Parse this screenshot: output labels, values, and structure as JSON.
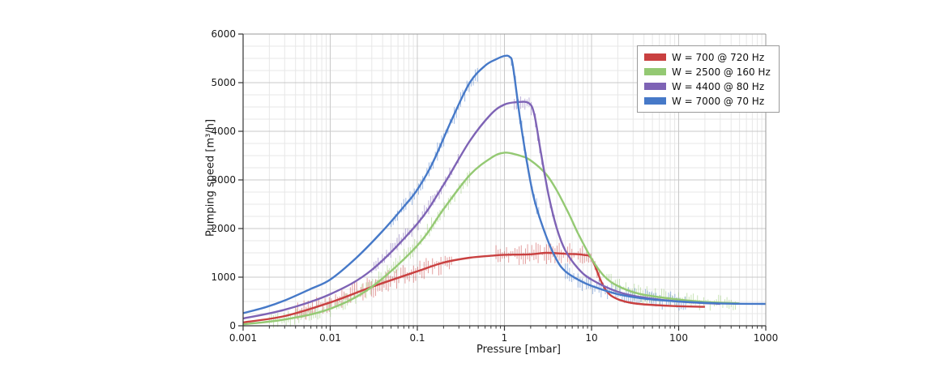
{
  "figure": {
    "background": "#ffffff",
    "plot_background": "#ffffff",
    "grid_major_color": "#c8c8c8",
    "grid_minor_color": "#e7e7e7",
    "spine_color": "#333333",
    "tick_label_color": "#1a1a1a"
  },
  "chart_data": {
    "type": "line",
    "title": "",
    "xlabel": "Pressure [mbar]",
    "ylabel": "Pumping speed [m³/h]",
    "x_scale": "log",
    "y_scale": "linear",
    "xlim": [
      0.001,
      1000
    ],
    "ylim": [
      0,
      6000
    ],
    "x_ticks": [
      0.001,
      0.01,
      0.1,
      1,
      10,
      100,
      1000
    ],
    "x_tick_labels": [
      "0.001",
      "0.01",
      "0.1",
      "1",
      "10",
      "100",
      "1000"
    ],
    "y_ticks": [
      0,
      1000,
      2000,
      3000,
      4000,
      5000,
      6000
    ],
    "y_tick_labels": [
      "0",
      "1000",
      "2000",
      "3000",
      "4000",
      "5000",
      "6000"
    ],
    "grid": true,
    "legend_position": "upper right",
    "series": [
      {
        "name": "W = 700 @ 720 Hz",
        "color": "#c94040",
        "points": [
          [
            0.001,
            70
          ],
          [
            0.003,
            200
          ],
          [
            0.01,
            480
          ],
          [
            0.03,
            800
          ],
          [
            0.1,
            1120
          ],
          [
            0.2,
            1300
          ],
          [
            0.4,
            1400
          ],
          [
            0.7,
            1440
          ],
          [
            1,
            1460
          ],
          [
            2,
            1470
          ],
          [
            3,
            1500
          ],
          [
            5,
            1480
          ],
          [
            8,
            1460
          ],
          [
            10,
            1380
          ],
          [
            13,
            900
          ],
          [
            16,
            650
          ],
          [
            22,
            520
          ],
          [
            35,
            450
          ],
          [
            80,
            410
          ],
          [
            200,
            390
          ]
        ],
        "noise_ranges": [
          [
            0.004,
            0.25
          ],
          [
            0.8,
            13
          ]
        ],
        "noise_amp": 14
      },
      {
        "name": "W = 2500 @ 160 Hz",
        "color": "#94c973",
        "points": [
          [
            0.001,
            30
          ],
          [
            0.003,
            130
          ],
          [
            0.01,
            350
          ],
          [
            0.03,
            800
          ],
          [
            0.1,
            1650
          ],
          [
            0.2,
            2400
          ],
          [
            0.4,
            3100
          ],
          [
            0.7,
            3450
          ],
          [
            1,
            3560
          ],
          [
            1.5,
            3500
          ],
          [
            2,
            3400
          ],
          [
            3,
            3120
          ],
          [
            4,
            2780
          ],
          [
            5.5,
            2300
          ],
          [
            7,
            1900
          ],
          [
            10,
            1380
          ],
          [
            14,
            1020
          ],
          [
            20,
            820
          ],
          [
            35,
            660
          ],
          [
            80,
            560
          ],
          [
            200,
            490
          ],
          [
            500,
            460
          ]
        ],
        "noise_ranges": [
          [
            0.002,
            0.4
          ],
          [
            15,
            450
          ]
        ],
        "noise_amp": 11
      },
      {
        "name": "W = 4400 @ 80 Hz",
        "color": "#7e63b5",
        "points": [
          [
            0.001,
            150
          ],
          [
            0.003,
            330
          ],
          [
            0.01,
            650
          ],
          [
            0.03,
            1150
          ],
          [
            0.1,
            2100
          ],
          [
            0.2,
            2900
          ],
          [
            0.4,
            3800
          ],
          [
            0.7,
            4350
          ],
          [
            1,
            4550
          ],
          [
            1.4,
            4600
          ],
          [
            1.9,
            4580
          ],
          [
            2.2,
            4350
          ],
          [
            2.6,
            3600
          ],
          [
            3.2,
            2700
          ],
          [
            4,
            2000
          ],
          [
            5,
            1550
          ],
          [
            7,
            1180
          ],
          [
            10,
            950
          ],
          [
            20,
            700
          ],
          [
            40,
            580
          ],
          [
            100,
            500
          ],
          [
            300,
            450
          ]
        ],
        "noise_ranges": [
          [
            0.03,
            0.3
          ],
          [
            1.3,
            4
          ]
        ],
        "noise_amp": 10
      },
      {
        "name": "W = 7000 @ 70 Hz",
        "color": "#4679c8",
        "points": [
          [
            0.001,
            260
          ],
          [
            0.0018,
            380
          ],
          [
            0.003,
            520
          ],
          [
            0.006,
            760
          ],
          [
            0.01,
            950
          ],
          [
            0.02,
            1400
          ],
          [
            0.04,
            1950
          ],
          [
            0.07,
            2450
          ],
          [
            0.1,
            2800
          ],
          [
            0.15,
            3350
          ],
          [
            0.25,
            4250
          ],
          [
            0.4,
            5000
          ],
          [
            0.6,
            5350
          ],
          [
            0.8,
            5480
          ],
          [
            1,
            5550
          ],
          [
            1.15,
            5530
          ],
          [
            1.25,
            5350
          ],
          [
            1.5,
            4300
          ],
          [
            1.8,
            3400
          ],
          [
            2.2,
            2600
          ],
          [
            3,
            1850
          ],
          [
            4,
            1350
          ],
          [
            5,
            1120
          ],
          [
            7,
            950
          ],
          [
            10,
            820
          ],
          [
            20,
            650
          ],
          [
            40,
            560
          ],
          [
            100,
            500
          ],
          [
            300,
            460
          ],
          [
            1000,
            450
          ]
        ],
        "noise_ranges": [
          [
            0.05,
            0.5
          ],
          [
            1.2,
            2.6
          ],
          [
            5,
            120
          ]
        ],
        "noise_amp": 12
      }
    ]
  }
}
